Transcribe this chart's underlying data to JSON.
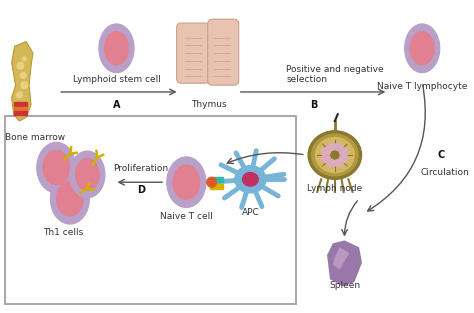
{
  "bg_color": "#ffffff",
  "labels": {
    "bone_marrow": "Bone marrow",
    "thymus": "Thymus",
    "naive_t_lymphocyte": "Naive T lymphocyte",
    "lymphoid_stem_cell": "Lymphoid stem cell",
    "positive_negative": "Positive and negative\nselection",
    "circulation": "Circulation",
    "lymph_node": "Lymph node",
    "spleen": "Spleen",
    "proliferation": "Proliferation",
    "th1_cells": "Th1 cells",
    "naive_t_cell": "Naive T cell",
    "apc": "APC",
    "A": "A",
    "B": "B",
    "C": "C",
    "D": "D"
  },
  "cell_pink_inner": "#e08090",
  "cell_pink_mid": "#d06878",
  "cell_outer": "#b8a0c8",
  "thymus_color": "#e8c4b0",
  "thymus_line": "#c8a090",
  "lymph_outer": "#8b7830",
  "lymph_mid": "#b09840",
  "lymph_inner": "#d4b860",
  "lymph_pink": "#dbaabb",
  "spleen_color": "#9878a8",
  "spleen_light": "#b898c0",
  "apc_color": "#78b4d8",
  "receptor_color": "#d4b000",
  "arrow_color": "#555555",
  "box_border": "#aaaaaa",
  "orange_dot": "#e05828",
  "cyan_line": "#30b8a8",
  "label_color": "#333333",
  "bold_label_color": "#111111"
}
